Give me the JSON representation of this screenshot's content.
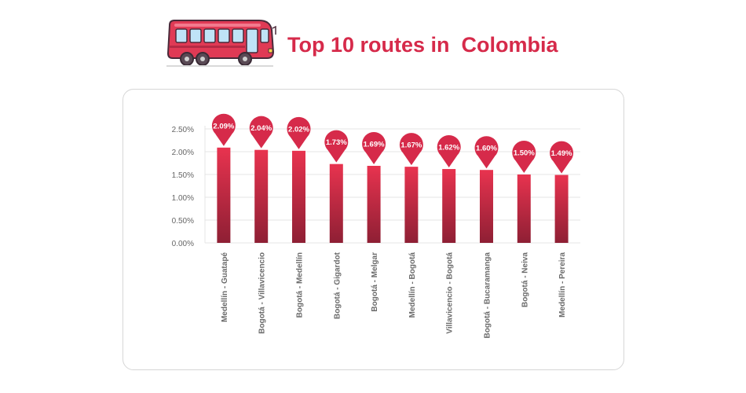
{
  "header": {
    "title": "Top 10 routes in  Colombia",
    "icon": "bus-icon"
  },
  "colors": {
    "accent": "#d62a4a",
    "bar_top": "#e8334f",
    "bar_bottom": "#8e1f34",
    "grid": "#e4e4e4",
    "tick_text": "#666666"
  },
  "chart_data": {
    "type": "bar",
    "categories": [
      "Medellín - Guatapé",
      "Bogotá - Villavicencio",
      "Bogotá - Medellín",
      "Bogotá - Gigardot",
      "Bogotá - Melgar",
      "Medellín - Bogotá",
      "Villavicencio - Bogotá",
      "Bogotá - Bucaramanga",
      "Bogotá - Neiva",
      "Medellín - Pereira"
    ],
    "values": [
      2.09,
      2.04,
      2.02,
      1.73,
      1.69,
      1.67,
      1.62,
      1.6,
      1.5,
      1.49
    ],
    "data_labels": [
      "2.09%",
      "2.04%",
      "2.02%",
      "1.73%",
      "1.69%",
      "1.67%",
      "1.62%",
      "1.60%",
      "1.50%",
      "1.49%"
    ],
    "yticks": [
      "0.00%",
      "0.50%",
      "1.00%",
      "1.50%",
      "2.00%",
      "2.50%"
    ],
    "ylim": [
      0,
      2.5
    ],
    "grid": true,
    "legend": "none"
  }
}
